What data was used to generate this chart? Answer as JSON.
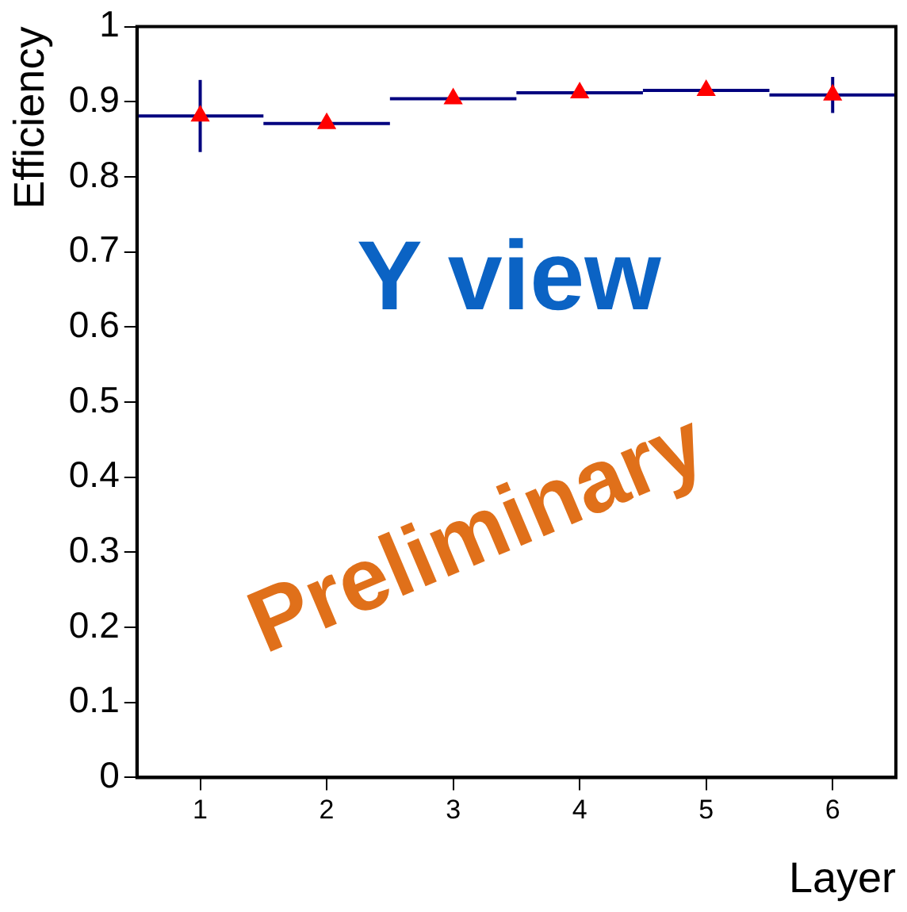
{
  "chart_data": {
    "type": "scatter",
    "xlabel": "Layer",
    "ylabel": "Efficiency",
    "x": [
      1,
      2,
      3,
      4,
      5,
      6
    ],
    "series": [
      {
        "color": "#ff0000",
        "values": [
          0.881,
          0.871,
          0.904,
          0.912,
          0.915,
          0.909
        ],
        "errors": [
          0.048,
          null,
          null,
          null,
          null,
          0.024
        ],
        "xerrors": [
          0.5,
          0.5,
          0.5,
          0.5,
          0.5,
          0.5
        ]
      }
    ],
    "xlim": [
      0.5,
      6.5
    ],
    "xticks": [
      1,
      2,
      3,
      4,
      5,
      6
    ],
    "ylim": [
      0,
      1
    ],
    "yticks": [
      0,
      0.1,
      0.2,
      0.3,
      0.4,
      0.5,
      0.6,
      0.7,
      0.8,
      0.9,
      1
    ],
    "marker": "triangle",
    "grid": false,
    "legend": false,
    "annotations": [
      "Y view",
      "Preliminary"
    ]
  }
}
